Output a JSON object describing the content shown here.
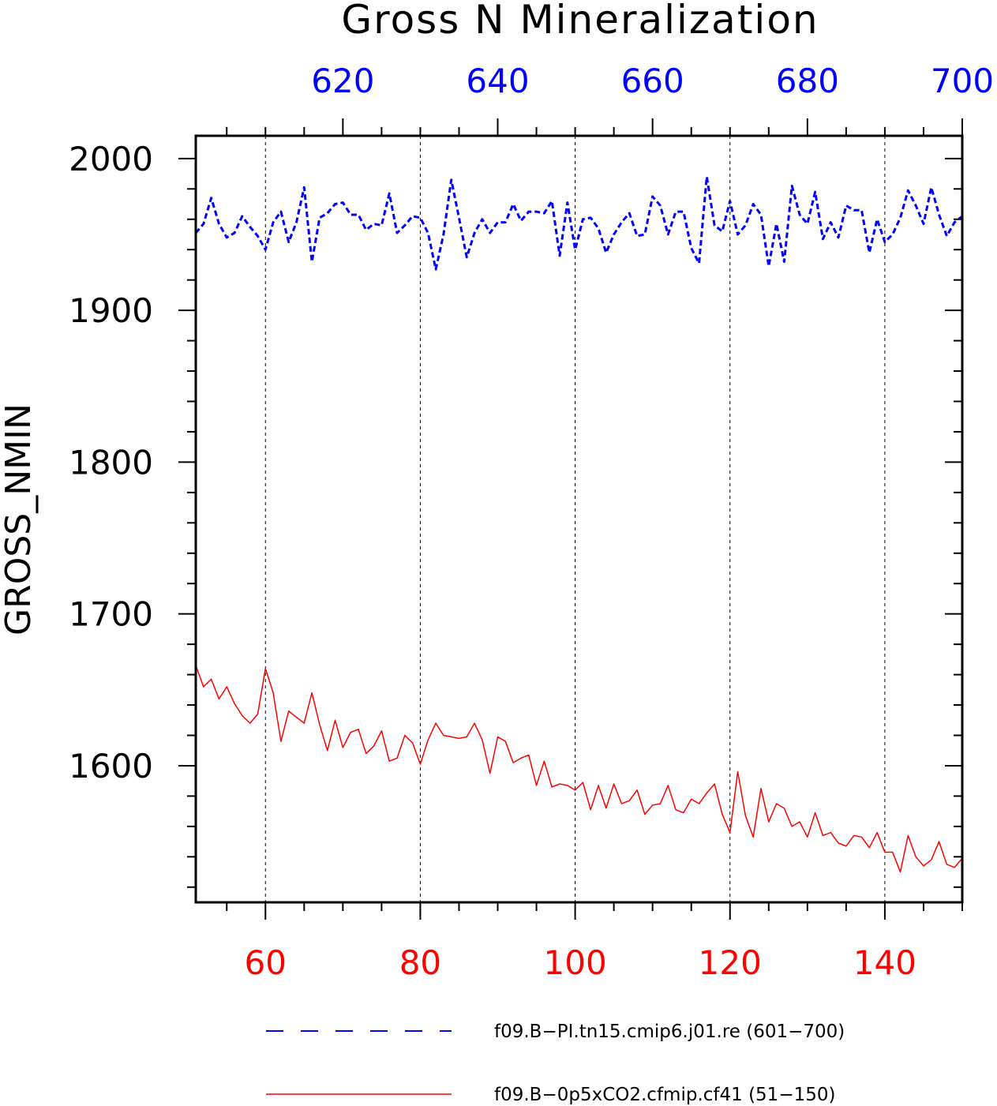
{
  "chart_data": {
    "type": "line",
    "title": "Gross N Mineralization",
    "ylabel": "GROSS_NMIN",
    "ylim": [
      1510,
      2015
    ],
    "yticks": [
      1600,
      1700,
      1800,
      1900,
      2000
    ],
    "grid": "vertical-dashed",
    "legend_position": "bottom",
    "axes": {
      "bottom": {
        "range": [
          51,
          150
        ],
        "ticks": [
          60,
          80,
          100,
          120,
          140
        ],
        "color": "#ff0000"
      },
      "top": {
        "range": [
          601,
          700
        ],
        "ticks": [
          620,
          640,
          660,
          680,
          700
        ],
        "color": "#0000ff"
      }
    },
    "series": [
      {
        "name": "f09.B−PI.tn15.cmip6.j01.re (601−700)",
        "axis": "top",
        "color": "#0000ff",
        "dash": "dashed",
        "x": [
          601,
          602,
          603,
          604,
          605,
          606,
          607,
          608,
          609,
          610,
          611,
          612,
          613,
          614,
          615,
          616,
          617,
          618,
          619,
          620,
          621,
          622,
          623,
          624,
          625,
          626,
          627,
          628,
          629,
          630,
          631,
          632,
          633,
          634,
          635,
          636,
          637,
          638,
          639,
          640,
          641,
          642,
          643,
          644,
          645,
          646,
          647,
          648,
          649,
          650,
          651,
          652,
          653,
          654,
          655,
          656,
          657,
          658,
          659,
          660,
          661,
          662,
          663,
          664,
          665,
          666,
          667,
          668,
          669,
          670,
          671,
          672,
          673,
          674,
          675,
          676,
          677,
          678,
          679,
          680,
          681,
          682,
          683,
          684,
          685,
          686,
          687,
          688,
          689,
          690,
          691,
          692,
          693,
          694,
          695,
          696,
          697,
          698,
          699,
          700
        ],
        "values": [
          1951,
          1957,
          1974,
          1957,
          1948,
          1951,
          1962,
          1955,
          1949,
          1940,
          1958,
          1965,
          1945,
          1958,
          1981,
          1932,
          1961,
          1964,
          1970,
          1971,
          1963,
          1963,
          1953,
          1957,
          1956,
          1977,
          1951,
          1956,
          1962,
          1961,
          1951,
          1927,
          1950,
          1986,
          1961,
          1935,
          1951,
          1960,
          1951,
          1958,
          1958,
          1970,
          1959,
          1965,
          1965,
          1964,
          1972,
          1936,
          1971,
          1940,
          1960,
          1961,
          1954,
          1938,
          1950,
          1958,
          1964,
          1949,
          1950,
          1975,
          1969,
          1950,
          1965,
          1965,
          1941,
          1931,
          1988,
          1956,
          1952,
          1972,
          1950,
          1956,
          1970,
          1963,
          1929,
          1957,
          1932,
          1982,
          1963,
          1957,
          1978,
          1947,
          1958,
          1948,
          1969,
          1966,
          1966,
          1938,
          1960,
          1945,
          1950,
          1961,
          1979,
          1969,
          1957,
          1981,
          1963,
          1949,
          1958,
          1962
        ]
      },
      {
        "name": "f09.B−0p5xCO2.cfmip.cf41 (51−150)",
        "axis": "bottom",
        "color": "#ff0000",
        "dash": "solid",
        "x": [
          51,
          52,
          53,
          54,
          55,
          56,
          57,
          58,
          59,
          60,
          61,
          62,
          63,
          64,
          65,
          66,
          67,
          68,
          69,
          70,
          71,
          72,
          73,
          74,
          75,
          76,
          77,
          78,
          79,
          80,
          81,
          82,
          83,
          84,
          85,
          86,
          87,
          88,
          89,
          90,
          91,
          92,
          93,
          94,
          95,
          96,
          97,
          98,
          99,
          100,
          101,
          102,
          103,
          104,
          105,
          106,
          107,
          108,
          109,
          110,
          111,
          112,
          113,
          114,
          115,
          116,
          117,
          118,
          119,
          120,
          121,
          122,
          123,
          124,
          125,
          126,
          127,
          128,
          129,
          130,
          131,
          132,
          133,
          134,
          135,
          136,
          137,
          138,
          139,
          140,
          141,
          142,
          143,
          144,
          145,
          146,
          147,
          148,
          149,
          150
        ],
        "values": [
          1666,
          1652,
          1657,
          1644,
          1652,
          1641,
          1633,
          1628,
          1634,
          1664,
          1648,
          1616,
          1636,
          1632,
          1628,
          1648,
          1627,
          1610,
          1630,
          1612,
          1622,
          1624,
          1608,
          1613,
          1623,
          1603,
          1605,
          1620,
          1615,
          1601,
          1617,
          1628,
          1620,
          1619,
          1618,
          1619,
          1628,
          1617,
          1595,
          1619,
          1616,
          1602,
          1605,
          1607,
          1587,
          1603,
          1586,
          1588,
          1587,
          1584,
          1589,
          1571,
          1587,
          1572,
          1588,
          1575,
          1577,
          1584,
          1568,
          1574,
          1575,
          1587,
          1571,
          1569,
          1578,
          1575,
          1582,
          1588,
          1568,
          1556,
          1596,
          1567,
          1553,
          1585,
          1563,
          1575,
          1572,
          1560,
          1563,
          1553,
          1569,
          1554,
          1556,
          1549,
          1547,
          1554,
          1553,
          1546,
          1556,
          1543,
          1543,
          1530,
          1554,
          1540,
          1534,
          1538,
          1550,
          1535,
          1533,
          1539
        ]
      }
    ]
  }
}
